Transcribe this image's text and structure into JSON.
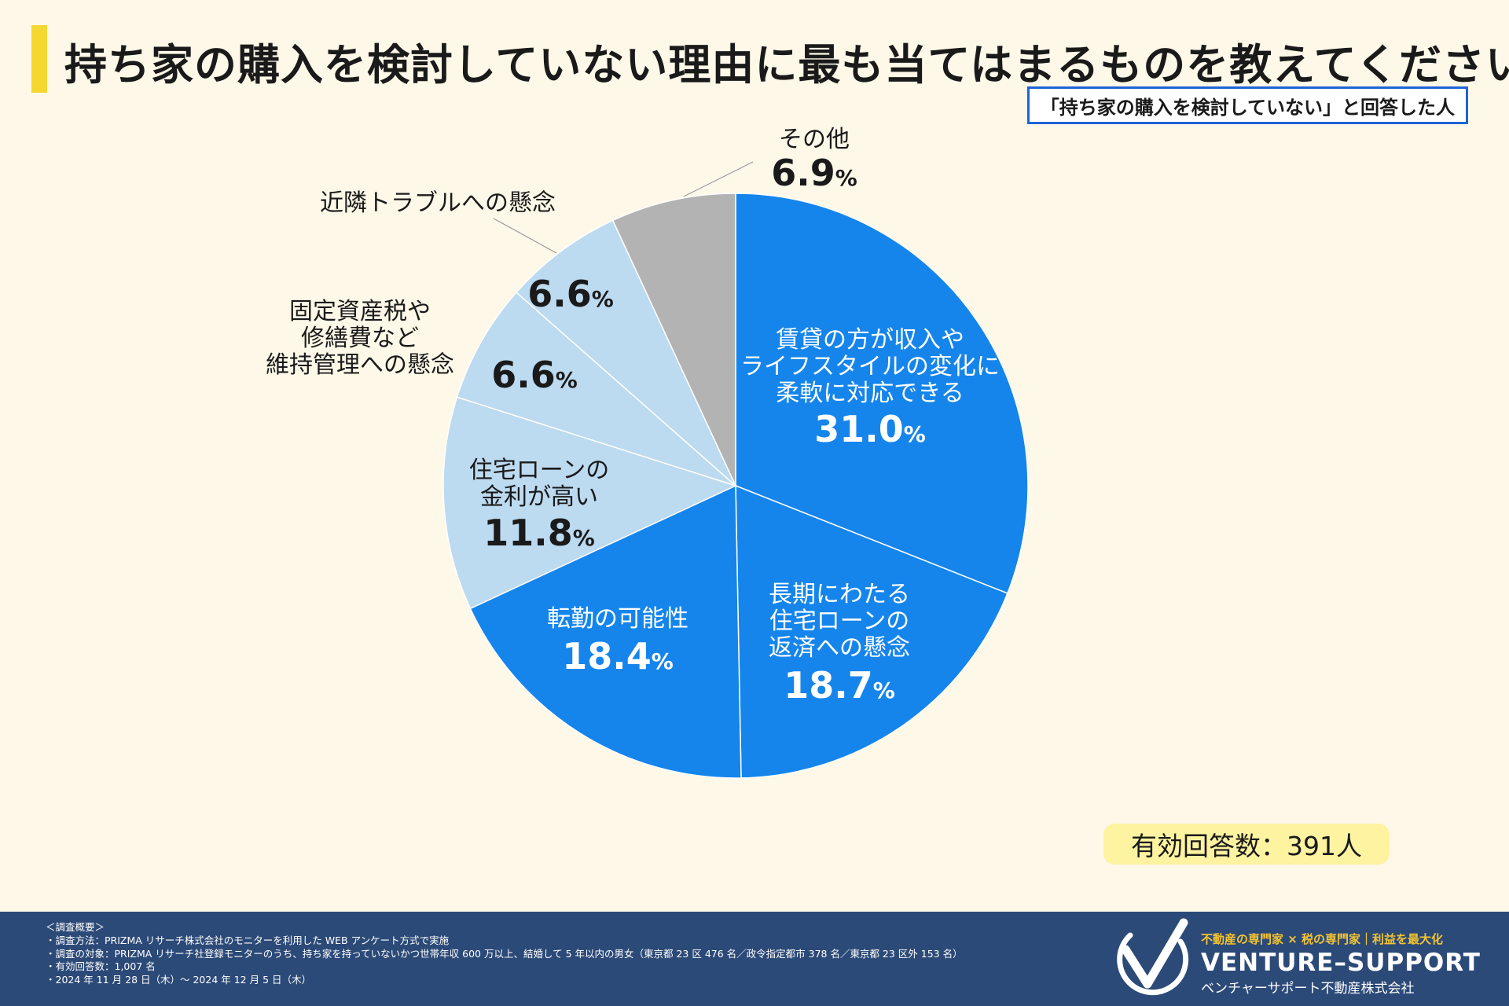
{
  "title": "持ち家の購入を検討していない理由に最も当てはまるものを教えてください",
  "respondent_note": "「持ち家の購入を検討していない」と回答した人",
  "valid_responses": "有効回答数：391人",
  "colors": {
    "accent": "#f5d731",
    "dark_blue": "#1585ec",
    "light_blue": "#bcdaf0",
    "gray": "#b3b3b3",
    "footer": "#2c4a78",
    "valid_box": "#fdf3a0"
  },
  "chart_data": {
    "type": "pie",
    "title": "持ち家の購入を検討していない理由に最も当てはまるものを教えてください",
    "unit": "%",
    "slices": [
      {
        "label": "賃貸の方が収入や\nライフスタイルの変化に\n柔軟に対応できる",
        "value": 31.0,
        "value_text": "31.0",
        "color": "#1585ec",
        "text_color": "#ffffff"
      },
      {
        "label": "長期にわたる\n住宅ローンの\n返済への懸念",
        "value": 18.7,
        "value_text": "18.7",
        "color": "#1585ec",
        "text_color": "#ffffff"
      },
      {
        "label": "転勤の可能性",
        "value": 18.4,
        "value_text": "18.4",
        "color": "#1585ec",
        "text_color": "#ffffff"
      },
      {
        "label": "住宅ローンの\n金利が高い",
        "value": 11.8,
        "value_text": "11.8",
        "color": "#bcdaf0",
        "text_color": "#1a1a1a"
      },
      {
        "label": "固定資産税や\n修繕費など\n維持管理への懸念",
        "value": 6.6,
        "value_text": "6.6",
        "color": "#bcdaf0",
        "text_color": "#1a1a1a"
      },
      {
        "label": "近隣トラブルへの懸念",
        "value": 6.6,
        "value_text": "6.6",
        "color": "#bcdaf0",
        "text_color": "#1a1a1a"
      },
      {
        "label": "その他",
        "value": 6.9,
        "value_text": "6.9",
        "color": "#b3b3b3",
        "text_color": "#1a1a1a"
      }
    ]
  },
  "footer": {
    "survey_heading": "＜調査概要＞",
    "survey_lines": [
      "・調査方法：PRIZMA リサーチ株式会社のモニターを利用した WEB アンケート方式で実施",
      "・調査の対象：PRIZMA リサーチ社登録モニターのうち、持ち家を持っていないかつ世帯年収 600 万以上、結婚して 5 年以内の男女（東京都 23 区 476 名／政令指定都市 378 名／東京都 23 区外 153 名）",
      "・有効回答数：1,007 名",
      "・2024 年 11 月 28 日（木）〜 2024 年 12 月 5 日（木）"
    ],
    "tagline": "不動産の専門家 × 税の専門家｜利益を最大化",
    "brand": "VENTURE–SUPPORT",
    "company": "ベンチャーサポート不動産株式会社"
  }
}
